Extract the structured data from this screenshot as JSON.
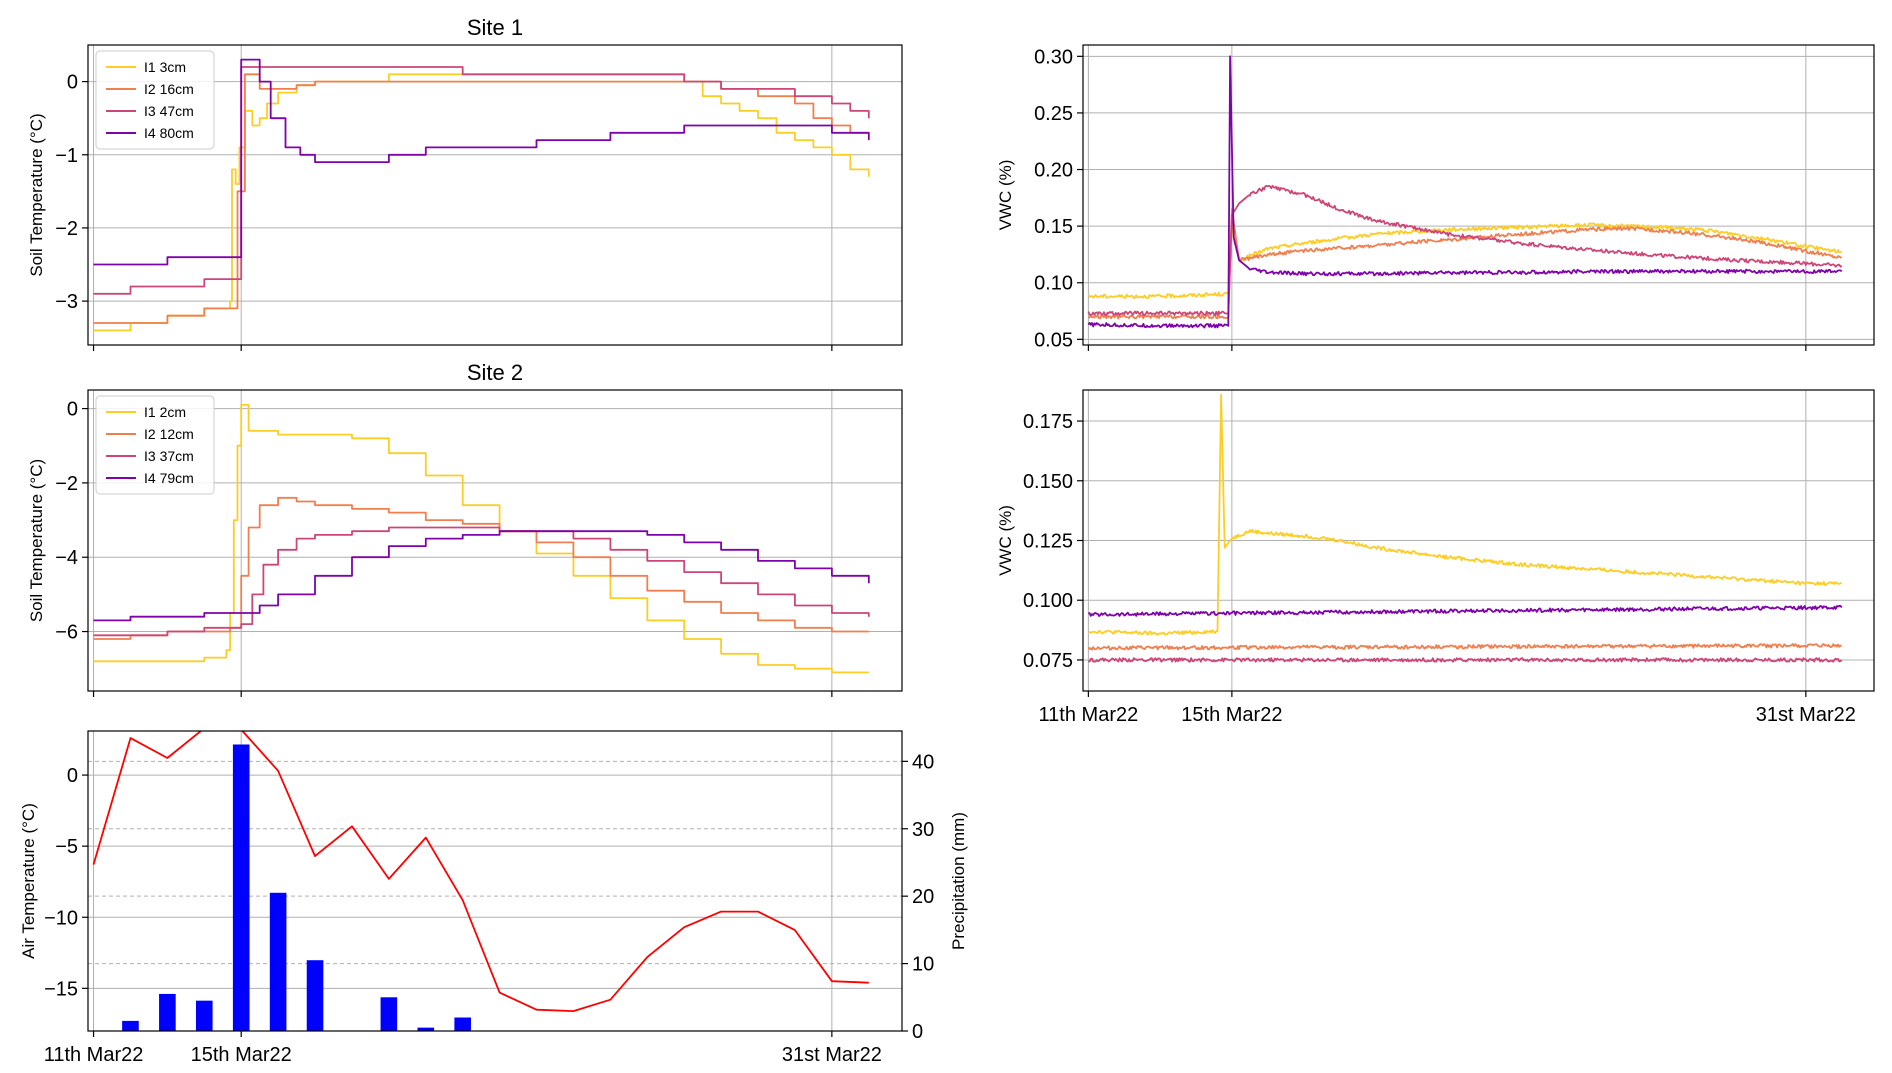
{
  "chart_data": [
    {
      "type": "line",
      "title": "Site 1",
      "xlabel": "",
      "ylabel": "Soil Temperature (°C)",
      "xlim": [
        -0.15,
        21.9
      ],
      "ylim": [
        -3.6,
        0.5
      ],
      "yticks": [
        0,
        -1,
        -2,
        -3
      ],
      "xtick_positions": [
        0,
        4,
        20
      ],
      "grid": true,
      "legend": "top-left",
      "series": [
        {
          "name": "I1 3cm",
          "color": "#fcce25",
          "x": [
            0,
            1,
            2,
            3,
            3.7,
            3.75,
            3.85,
            3.95,
            4.1,
            4.3,
            4.5,
            4.7,
            5,
            5.5,
            6,
            8,
            10,
            12,
            14,
            15.5,
            16,
            16.5,
            17,
            17.5,
            18,
            18.5,
            19,
            19.5,
            20,
            20.5,
            21
          ],
          "y": [
            -3.4,
            -3.3,
            -3.2,
            -3.1,
            -3.0,
            -1.2,
            -1.4,
            -0.9,
            -0.4,
            -0.6,
            -0.5,
            -0.3,
            -0.15,
            -0.05,
            0.0,
            0.1,
            0.1,
            0.1,
            0.1,
            0.1,
            0.0,
            -0.2,
            -0.3,
            -0.4,
            -0.5,
            -0.7,
            -0.8,
            -0.9,
            -1.0,
            -1.2,
            -1.3
          ]
        },
        {
          "name": "I2 16cm",
          "color": "#f07f4f",
          "x": [
            0,
            1,
            2,
            3,
            3.8,
            3.9,
            4.1,
            4.5,
            5,
            5.5,
            6,
            7,
            8,
            10,
            12,
            14,
            16,
            17,
            18,
            19,
            19.5,
            20,
            20.5,
            21
          ],
          "y": [
            -3.3,
            -3.3,
            -3.2,
            -3.1,
            -3.1,
            -1.5,
            0.1,
            -0.1,
            -0.1,
            -0.05,
            0.0,
            0.0,
            0.0,
            0.0,
            0.0,
            0.0,
            0.0,
            -0.1,
            -0.2,
            -0.3,
            -0.5,
            -0.6,
            -0.7,
            -0.7
          ]
        },
        {
          "name": "I3 47cm",
          "color": "#cc4778",
          "x": [
            0,
            1,
            2,
            3,
            3.9,
            4.0,
            4.3,
            5,
            6,
            8,
            10,
            12,
            14,
            16,
            17,
            18,
            19,
            20,
            20.5,
            21
          ],
          "y": [
            -2.9,
            -2.8,
            -2.8,
            -2.7,
            -2.7,
            0.2,
            0.2,
            0.2,
            0.2,
            0.2,
            0.1,
            0.1,
            0.1,
            0.0,
            -0.1,
            -0.1,
            -0.2,
            -0.3,
            -0.4,
            -0.5
          ]
        },
        {
          "name": "I4 80cm",
          "color": "#7e03a8",
          "x": [
            0,
            1,
            2,
            3,
            3.9,
            4.0,
            4.2,
            4.5,
            4.8,
            5.2,
            5.6,
            6,
            6.5,
            8,
            9,
            10,
            12,
            14,
            16,
            18,
            20,
            21
          ],
          "y": [
            -2.5,
            -2.5,
            -2.4,
            -2.4,
            -2.4,
            0.3,
            0.3,
            0.0,
            -0.5,
            -0.9,
            -1.0,
            -1.1,
            -1.1,
            -1.0,
            -0.9,
            -0.9,
            -0.8,
            -0.7,
            -0.6,
            -0.6,
            -0.7,
            -0.8
          ]
        }
      ]
    },
    {
      "type": "line",
      "title": "Site 2",
      "xlabel": "",
      "ylabel": "Soil Temperature (°C)",
      "xlim": [
        -0.15,
        21.9
      ],
      "ylim": [
        -7.6,
        0.5
      ],
      "yticks": [
        0,
        -2,
        -4,
        -6
      ],
      "xtick_positions": [
        0,
        4,
        20
      ],
      "grid": true,
      "legend": "top-left",
      "series": [
        {
          "name": "I1 2cm",
          "color": "#fcce25",
          "x": [
            0,
            1,
            2,
            3,
            3.6,
            3.7,
            3.8,
            3.9,
            4.0,
            4.2,
            4.5,
            5,
            6,
            7,
            8,
            9,
            10,
            11,
            12,
            13,
            14,
            15,
            16,
            17,
            18,
            19,
            20,
            21
          ],
          "y": [
            -6.8,
            -6.8,
            -6.8,
            -6.7,
            -6.5,
            -5.5,
            -3.0,
            -1.0,
            0.1,
            -0.6,
            -0.6,
            -0.7,
            -0.7,
            -0.8,
            -1.2,
            -1.8,
            -2.6,
            -3.3,
            -3.9,
            -4.5,
            -5.1,
            -5.7,
            -6.2,
            -6.6,
            -6.9,
            -7.0,
            -7.1,
            -7.1
          ]
        },
        {
          "name": "I2 12cm",
          "color": "#f07f4f",
          "x": [
            0,
            1,
            2,
            3,
            3.7,
            4.0,
            4.2,
            4.5,
            5,
            5.5,
            6,
            7,
            8,
            9,
            10,
            11,
            12,
            13,
            14,
            15,
            16,
            17,
            18,
            19,
            20,
            21
          ],
          "y": [
            -6.2,
            -6.1,
            -6.0,
            -6.0,
            -5.9,
            -4.5,
            -3.2,
            -2.6,
            -2.4,
            -2.5,
            -2.6,
            -2.7,
            -2.8,
            -3.0,
            -3.1,
            -3.3,
            -3.6,
            -4.0,
            -4.5,
            -4.9,
            -5.2,
            -5.5,
            -5.7,
            -5.9,
            -6.0,
            -6.0
          ]
        },
        {
          "name": "I3 37cm",
          "color": "#cc4778",
          "x": [
            0,
            1,
            2,
            3,
            4.0,
            4.3,
            4.6,
            5,
            5.5,
            6,
            7,
            8,
            9,
            10,
            11,
            12,
            13,
            14,
            15,
            16,
            17,
            18,
            19,
            20,
            21
          ],
          "y": [
            -6.1,
            -6.1,
            -6.0,
            -5.9,
            -5.8,
            -5.0,
            -4.2,
            -3.8,
            -3.5,
            -3.4,
            -3.3,
            -3.2,
            -3.2,
            -3.2,
            -3.3,
            -3.3,
            -3.5,
            -3.8,
            -4.1,
            -4.4,
            -4.7,
            -5.0,
            -5.3,
            -5.5,
            -5.6
          ]
        },
        {
          "name": "I4 79cm",
          "color": "#7e03a8",
          "x": [
            0,
            1,
            2,
            3,
            4.0,
            4.5,
            5,
            6,
            7,
            8,
            9,
            10,
            11,
            12,
            13,
            14,
            15,
            16,
            17,
            18,
            19,
            20,
            21
          ],
          "y": [
            -5.7,
            -5.6,
            -5.6,
            -5.5,
            -5.5,
            -5.3,
            -5.0,
            -4.5,
            -4.0,
            -3.7,
            -3.5,
            -3.4,
            -3.3,
            -3.3,
            -3.3,
            -3.3,
            -3.4,
            -3.6,
            -3.8,
            -4.1,
            -4.3,
            -4.5,
            -4.7
          ]
        }
      ]
    },
    {
      "type": "line",
      "title": "",
      "xlabel": "",
      "ylabel": "VWC (%)",
      "xlim": [
        -0.15,
        21.9
      ],
      "ylim": [
        0.045,
        0.31
      ],
      "yticks": [
        0.3,
        0.25,
        0.2,
        0.15,
        0.1,
        0.05
      ],
      "xtick_positions": [
        0,
        4,
        20
      ],
      "grid": true,
      "legend": "none",
      "series": [
        {
          "color": "#fcce25",
          "x": [
            0,
            2,
            3.9,
            4.0,
            4.2,
            5,
            6,
            8,
            10,
            12,
            14,
            15,
            16,
            17,
            18,
            19,
            20,
            21
          ],
          "y": [
            0.088,
            0.088,
            0.09,
            0.15,
            0.12,
            0.13,
            0.135,
            0.143,
            0.147,
            0.149,
            0.151,
            0.15,
            0.149,
            0.147,
            0.143,
            0.138,
            0.132,
            0.127
          ]
        },
        {
          "color": "#f07f4f",
          "x": [
            0,
            2,
            3.9,
            4.0,
            4.2,
            5,
            6,
            8,
            10,
            12,
            14,
            15,
            16,
            17,
            18,
            19,
            20,
            21
          ],
          "y": [
            0.07,
            0.07,
            0.07,
            0.165,
            0.12,
            0.125,
            0.128,
            0.133,
            0.138,
            0.143,
            0.147,
            0.148,
            0.146,
            0.143,
            0.139,
            0.134,
            0.128,
            0.122
          ]
        },
        {
          "color": "#cc4778",
          "x": [
            0,
            2,
            3.9,
            4.0,
            4.2,
            4.5,
            5,
            6,
            7,
            8,
            10,
            12,
            14,
            16,
            18,
            20,
            21
          ],
          "y": [
            0.073,
            0.073,
            0.073,
            0.16,
            0.17,
            0.178,
            0.185,
            0.178,
            0.165,
            0.155,
            0.143,
            0.135,
            0.129,
            0.124,
            0.12,
            0.117,
            0.115
          ]
        },
        {
          "color": "#7e03a8",
          "x": [
            0,
            2,
            3.9,
            3.95,
            4.05,
            4.2,
            4.5,
            5,
            6,
            8,
            10,
            12,
            14,
            16,
            18,
            20,
            21
          ],
          "y": [
            0.063,
            0.062,
            0.062,
            0.3,
            0.14,
            0.12,
            0.112,
            0.109,
            0.108,
            0.108,
            0.109,
            0.109,
            0.11,
            0.11,
            0.11,
            0.11,
            0.11
          ]
        }
      ]
    },
    {
      "type": "line",
      "title": "",
      "xlabel": "",
      "ylabel": "VWC (%)",
      "xlim": [
        -0.15,
        21.9
      ],
      "ylim": [
        0.062,
        0.188
      ],
      "yticks": [
        0.175,
        0.15,
        0.125,
        0.1,
        0.075
      ],
      "xtick_labels": [
        "11th Mar22",
        "15th Mar22",
        "31st Mar22"
      ],
      "xtick_positions": [
        0,
        4,
        20
      ],
      "grid": true,
      "legend": "none",
      "series": [
        {
          "color": "#fcce25",
          "x": [
            0,
            2,
            3.6,
            3.7,
            3.8,
            4.0,
            4.5,
            5,
            6,
            7,
            8,
            10,
            12,
            14,
            16,
            18,
            20,
            21
          ],
          "y": [
            0.087,
            0.086,
            0.087,
            0.186,
            0.122,
            0.126,
            0.129,
            0.128,
            0.127,
            0.125,
            0.122,
            0.118,
            0.115,
            0.113,
            0.111,
            0.109,
            0.107,
            0.107
          ]
        },
        {
          "color": "#f07f4f",
          "x": [
            0,
            21
          ],
          "y": [
            0.08,
            0.081
          ]
        },
        {
          "color": "#cc4778",
          "x": [
            0,
            21
          ],
          "y": [
            0.075,
            0.075
          ]
        },
        {
          "color": "#7e03a8",
          "x": [
            0,
            21
          ],
          "y": [
            0.094,
            0.097
          ]
        }
      ]
    },
    {
      "type": "bar+line",
      "title": "",
      "xlabel": "",
      "ylabel": "Air Temperature (°C)",
      "ylabel_right": "Precipitation (mm)",
      "xlim": [
        -0.15,
        21.9
      ],
      "ylim": [
        -18.0,
        3.1
      ],
      "ylim_right": [
        0,
        44.5
      ],
      "yticks": [
        0,
        -5,
        -10,
        -15
      ],
      "yticks_right": [
        40,
        30,
        20,
        10,
        0
      ],
      "xtick_labels": [
        "11th Mar22",
        "15th Mar22",
        "31st Mar22"
      ],
      "xtick_positions": [
        0,
        4,
        20
      ],
      "grid": true,
      "legend": "none",
      "series": [
        {
          "type": "line",
          "color": "#ff0000",
          "x": [
            0,
            1,
            2,
            3,
            4,
            5,
            6,
            7,
            8,
            9,
            10,
            11,
            12,
            13,
            14,
            15,
            16,
            17,
            18,
            19,
            20,
            21
          ],
          "y": [
            -6.3,
            2.6,
            1.2,
            3.3,
            3.2,
            0.3,
            -5.7,
            -3.6,
            -7.3,
            -4.4,
            -8.8,
            -15.3,
            -16.5,
            -16.6,
            -15.8,
            -12.8,
            -10.7,
            -9.6,
            -9.6,
            -10.9,
            -14.5,
            -14.6
          ]
        },
        {
          "type": "bar",
          "color": "#0000ff",
          "x": [
            1,
            2,
            3,
            4,
            5,
            6,
            8,
            9,
            10
          ],
          "y": [
            1.5,
            5.5,
            4.5,
            42.5,
            20.5,
            10.5,
            5.0,
            0.5,
            2.0
          ]
        }
      ]
    }
  ]
}
